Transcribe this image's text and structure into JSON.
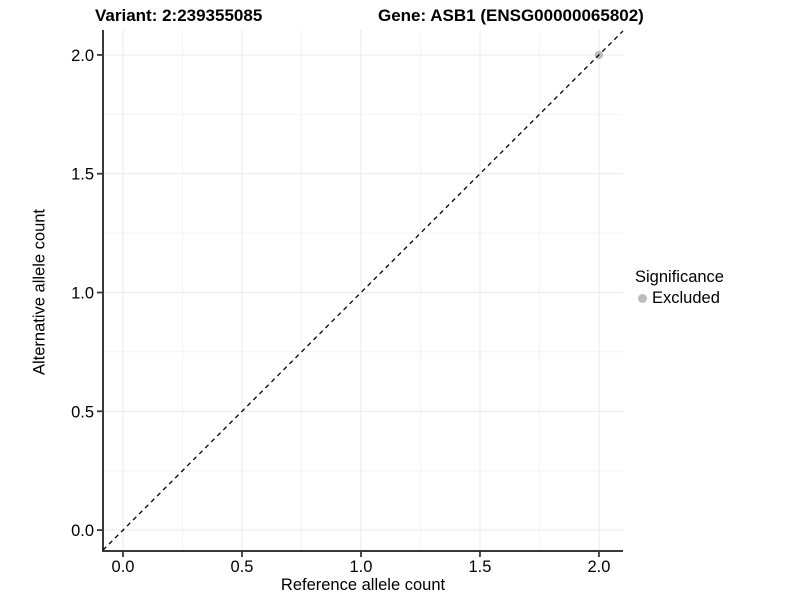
{
  "chart_data": {
    "type": "scatter",
    "titles": [
      "Variant: 2:239355085",
      "Gene: ASB1 (ENSG00000065802)"
    ],
    "xlabel": "Reference allele count",
    "ylabel": "Alternative allele count",
    "x_ticks": {
      "values": [
        0,
        0.5,
        1,
        1.5,
        2
      ],
      "labels": [
        "0.0",
        "0.5",
        "1.0",
        "1.5",
        "2.0"
      ]
    },
    "y_ticks": {
      "values": [
        0,
        0.5,
        1,
        1.5,
        2
      ],
      "labels": [
        "0.0",
        "0.5",
        "1.0",
        "1.5",
        "2.0"
      ]
    },
    "xlim": [
      -0.084,
      2.101
    ],
    "ylim": [
      -0.088,
      2.105
    ],
    "grid": {
      "major": true,
      "minor": true,
      "major_color": "#e9e9e9",
      "minor_color": "#f4f4f4"
    },
    "axis_line_color": "#383838",
    "reference_line": {
      "type": "identity",
      "slope": 1,
      "intercept": 0,
      "style": "dashed",
      "color": "#000000"
    },
    "series": [
      {
        "name": "Excluded",
        "color": "#bcbcbc",
        "points": [
          [
            2.0,
            2.0
          ]
        ]
      }
    ],
    "legend": {
      "title": "Significance",
      "position": "right",
      "entries": [
        {
          "label": "Excluded",
          "color": "#bcbcbc"
        }
      ]
    }
  }
}
